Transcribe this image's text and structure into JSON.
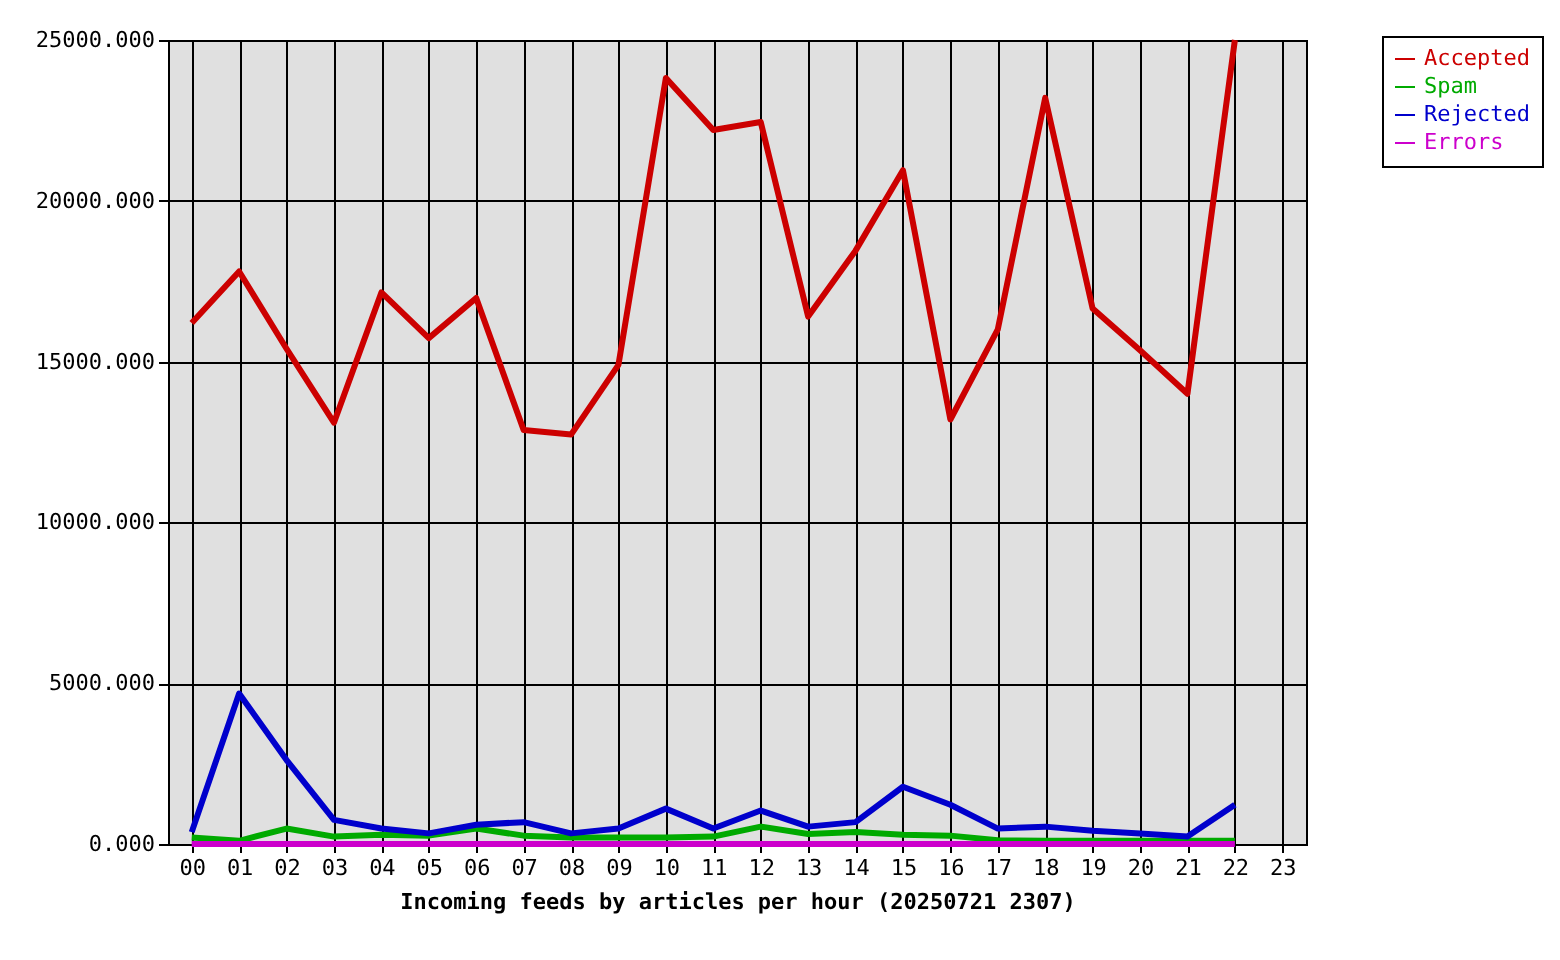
{
  "chart_data": {
    "type": "line",
    "xlabel": "Incoming feeds by articles per hour (20250721 2307)",
    "categories": [
      "00",
      "01",
      "02",
      "03",
      "04",
      "05",
      "06",
      "07",
      "08",
      "09",
      "10",
      "11",
      "12",
      "13",
      "14",
      "15",
      "16",
      "17",
      "18",
      "19",
      "20",
      "21",
      "22",
      "23"
    ],
    "series": [
      {
        "name": "Accepted",
        "color": "#cc0000",
        "values": [
          16200,
          17800,
          15400,
          13100,
          17150,
          15730,
          16980,
          12870,
          12730,
          14900,
          23820,
          22200,
          22450,
          16400,
          18450,
          20950,
          13200,
          16000,
          23200,
          16650,
          15350,
          14000,
          25000,
          null
        ]
      },
      {
        "name": "Spam",
        "color": "#00aa00",
        "values": [
          200,
          100,
          480,
          230,
          290,
          260,
          480,
          260,
          200,
          200,
          200,
          230,
          540,
          310,
          370,
          290,
          260,
          120,
          100,
          100,
          100,
          100,
          100,
          null
        ]
      },
      {
        "name": "Rejected",
        "color": "#0000cc",
        "values": [
          370,
          4680,
          2610,
          750,
          480,
          330,
          600,
          680,
          330,
          480,
          1100,
          480,
          1040,
          540,
          680,
          1780,
          1220,
          480,
          540,
          410,
          330,
          230,
          1220,
          null
        ]
      },
      {
        "name": "Errors",
        "color": "#cc00cc",
        "values": [
          0,
          0,
          0,
          0,
          0,
          0,
          0,
          0,
          0,
          0,
          0,
          0,
          0,
          0,
          0,
          0,
          0,
          0,
          0,
          0,
          0,
          0,
          0,
          null
        ]
      }
    ],
    "ylim": [
      0,
      25000
    ],
    "yticks": [
      {
        "value": 0,
        "label": "0.000"
      },
      {
        "value": 5000,
        "label": "5000.000"
      },
      {
        "value": 10000,
        "label": "10000.000"
      },
      {
        "value": 15000,
        "label": "15000.000"
      },
      {
        "value": 20000,
        "label": "20000.000"
      },
      {
        "value": 25000,
        "label": "25000.000"
      }
    ],
    "grid": true,
    "legend": "right",
    "marker": "none",
    "line_style": "solid"
  }
}
